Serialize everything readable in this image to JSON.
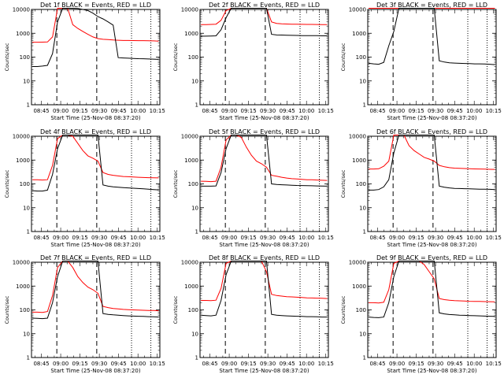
{
  "chart_data": [
    {
      "type": "line",
      "title": "Det 1f BLACK = Events, RED = LLD",
      "xlabel": "Start Time (25-Nov-08 08:37:20)",
      "ylabel": "Counts/sec",
      "yscale": "log",
      "ylim": [
        1,
        10000
      ],
      "x_tick_labels": [
        "08:45",
        "09:00",
        "09:15",
        "09:30",
        "09:45",
        "10:00",
        "10:15"
      ],
      "y_tick_labels": [
        "1",
        "10",
        "100",
        "1000",
        "10000"
      ],
      "series": [
        {
          "color": "#ff0000",
          "values": [
            420,
            420,
            425,
            430,
            700,
            12000,
            12000,
            11000,
            2300,
            1600,
            1200,
            900,
            700,
            600,
            560,
            540,
            520,
            510,
            500,
            500,
            495,
            490,
            490,
            485,
            480,
            470
          ]
        },
        {
          "color": "#000000",
          "values": [
            40,
            40,
            42,
            45,
            140,
            3000,
            12000,
            12000,
            11500,
            11000,
            10000,
            9000,
            7000,
            5000,
            4000,
            3000,
            2200,
            95,
            92,
            90,
            88,
            86,
            85,
            83,
            82,
            80
          ]
        }
      ],
      "markers": {
        "dashed": [
          "08:57",
          "09:28"
        ],
        "dotted": [
          "09:55",
          "10:10"
        ]
      }
    },
    {
      "type": "line",
      "title": "Det 2f BLACK = Events, RED = LLD",
      "xlabel": "Start Time (25-Nov-08 08:37:20)",
      "ylabel": "Counts/sec",
      "yscale": "log",
      "ylim": [
        1,
        10000
      ],
      "x_tick_labels": [
        "08:45",
        "09:00",
        "09:15",
        "09:30",
        "09:45",
        "10:00",
        "10:15"
      ],
      "y_tick_labels": [
        "1",
        "10",
        "100",
        "1000",
        "10000"
      ],
      "series": [
        {
          "color": "#ff0000",
          "values": [
            2300,
            2300,
            2350,
            2400,
            3500,
            9000,
            12000,
            12000,
            12000,
            12000,
            12000,
            12000,
            12000,
            12000,
            3000,
            2600,
            2500,
            2450,
            2400,
            2400,
            2380,
            2350,
            2350,
            2330,
            2320,
            2300
          ]
        },
        {
          "color": "#000000",
          "values": [
            750,
            760,
            770,
            780,
            1400,
            4500,
            12000,
            12000,
            12000,
            12000,
            12000,
            12000,
            12000,
            12000,
            900,
            850,
            840,
            830,
            820,
            810,
            800,
            800,
            790,
            790,
            780,
            780
          ]
        }
      ],
      "markers": {
        "dashed": [
          "08:57",
          "09:28"
        ],
        "dotted": [
          "09:55",
          "10:10"
        ]
      }
    },
    {
      "type": "line",
      "title": "Det 3f BLACK = Events, RED = LLD",
      "xlabel": "Start Time (25-Nov-08 08:37:20)",
      "ylabel": "Counts/sec",
      "yscale": "log",
      "ylim": [
        1,
        10000
      ],
      "x_tick_labels": [
        "08:45",
        "09:00",
        "09:15",
        "09:30",
        "09:45",
        "10:00",
        "10:15"
      ],
      "y_tick_labels": [
        "1",
        "10",
        "100",
        "1000",
        "10000"
      ],
      "series": [
        {
          "color": "#ff0000",
          "values": [
            12000,
            12000,
            12000,
            12000,
            12000,
            12000,
            12000,
            12000,
            12000,
            12000,
            12000,
            12000,
            12000,
            12000,
            12000,
            12000,
            12000,
            12000,
            12000,
            12000,
            12000,
            12000,
            12000,
            12000,
            12000,
            12000
          ]
        },
        {
          "color": "#000000",
          "values": [
            55,
            52,
            50,
            60,
            300,
            1200,
            12000,
            12000,
            12000,
            12000,
            12000,
            12000,
            12000,
            12000,
            70,
            62,
            58,
            56,
            55,
            54,
            53,
            52,
            52,
            51,
            50,
            48
          ]
        }
      ],
      "markers": {
        "dashed": [
          "08:57",
          "09:28"
        ],
        "dotted": [
          "09:55",
          "10:10"
        ]
      }
    },
    {
      "type": "line",
      "title": "Det 4f BLACK = Events, RED = LLD",
      "xlabel": "Start Time (25-Nov-08 08:37:20)",
      "ylabel": "Counts/sec",
      "yscale": "log",
      "ylim": [
        1,
        10000
      ],
      "x_tick_labels": [
        "08:45",
        "09:00",
        "09:15",
        "09:30",
        "09:45",
        "10:00",
        "10:15"
      ],
      "y_tick_labels": [
        "1",
        "10",
        "100",
        "1000",
        "10000"
      ],
      "series": [
        {
          "color": "#ff0000",
          "values": [
            150,
            148,
            145,
            150,
            600,
            8000,
            12000,
            12000,
            10000,
            5000,
            2500,
            1500,
            1200,
            900,
            300,
            250,
            230,
            215,
            205,
            200,
            195,
            190,
            185,
            182,
            180,
            178
          ]
        },
        {
          "color": "#000000",
          "values": [
            52,
            50,
            50,
            55,
            250,
            3000,
            12000,
            12000,
            12000,
            12000,
            12000,
            12000,
            12000,
            12000,
            90,
            80,
            75,
            72,
            70,
            68,
            66,
            64,
            62,
            60,
            58,
            56
          ]
        }
      ],
      "markers": {
        "dashed": [
          "08:57",
          "09:28"
        ],
        "dotted": [
          "09:55",
          "10:10"
        ]
      }
    },
    {
      "type": "line",
      "title": "Det 5f BLACK = Events, RED = LLD",
      "xlabel": "Start Time (25-Nov-08 08:37:20)",
      "ylabel": "Counts/sec",
      "yscale": "log",
      "ylim": [
        1,
        10000
      ],
      "x_tick_labels": [
        "08:45",
        "09:00",
        "09:15",
        "09:30",
        "09:45",
        "10:00",
        "10:15"
      ],
      "y_tick_labels": [
        "1",
        "10",
        "100",
        "1000",
        "10000"
      ],
      "series": [
        {
          "color": "#ff0000",
          "values": [
            130,
            128,
            125,
            130,
            500,
            7000,
            12000,
            12000,
            9000,
            3500,
            1600,
            900,
            700,
            500,
            230,
            210,
            190,
            175,
            165,
            160,
            155,
            150,
            148,
            145,
            142,
            140
          ]
        },
        {
          "color": "#000000",
          "values": [
            80,
            80,
            80,
            82,
            300,
            3000,
            12000,
            12000,
            12000,
            12000,
            12000,
            12000,
            12000,
            12000,
            100,
            95,
            92,
            90,
            88,
            86,
            85,
            84,
            83,
            82,
            81,
            80
          ]
        }
      ],
      "markers": {
        "dashed": [
          "08:57",
          "09:28"
        ],
        "dotted": [
          "09:55",
          "10:10"
        ]
      }
    },
    {
      "type": "line",
      "title": "Det 6f BLACK = Events, RED = LLD",
      "xlabel": "Start Time (25-Nov-08 08:37:20)",
      "ylabel": "Counts/sec",
      "yscale": "log",
      "ylim": [
        1,
        10000
      ],
      "x_tick_labels": [
        "08:45",
        "09:00",
        "09:15",
        "09:30",
        "09:45",
        "10:00",
        "10:15"
      ],
      "y_tick_labels": [
        "1",
        "10",
        "100",
        "1000",
        "10000"
      ],
      "series": [
        {
          "color": "#ff0000",
          "values": [
            420,
            420,
            430,
            550,
            900,
            12000,
            12000,
            12000,
            4000,
            2500,
            1800,
            1300,
            1100,
            900,
            600,
            520,
            480,
            460,
            450,
            440,
            430,
            425,
            420,
            415,
            410,
            405
          ]
        },
        {
          "color": "#000000",
          "values": [
            55,
            55,
            58,
            75,
            150,
            2000,
            12000,
            12000,
            12000,
            12000,
            12000,
            12000,
            12000,
            12000,
            80,
            72,
            68,
            65,
            64,
            63,
            62,
            61,
            60,
            60,
            59,
            58
          ]
        }
      ],
      "markers": {
        "dashed": [
          "08:57",
          "09:28"
        ],
        "dotted": [
          "09:55",
          "10:10"
        ]
      }
    },
    {
      "type": "line",
      "title": "Det 7f BLACK = Events, RED = LLD",
      "xlabel": "Start Time (25-Nov-08 08:37:20)",
      "ylabel": "Counts/sec",
      "yscale": "log",
      "ylim": [
        1,
        10000
      ],
      "x_tick_labels": [
        "08:45",
        "09:00",
        "09:15",
        "09:30",
        "09:45",
        "10:00",
        "10:15"
      ],
      "y_tick_labels": [
        "1",
        "10",
        "100",
        "1000",
        "10000"
      ],
      "series": [
        {
          "color": "#ff0000",
          "values": [
            80,
            80,
            78,
            85,
            400,
            6000,
            12000,
            12000,
            6000,
            2500,
            1400,
            900,
            700,
            500,
            140,
            125,
            115,
            110,
            105,
            102,
            100,
            98,
            96,
            95,
            94,
            92
          ]
        },
        {
          "color": "#000000",
          "values": [
            45,
            44,
            43,
            45,
            200,
            2500,
            12000,
            12000,
            12000,
            12000,
            12000,
            12000,
            12000,
            12000,
            70,
            65,
            62,
            60,
            58,
            56,
            55,
            54,
            53,
            52,
            51,
            50
          ]
        }
      ],
      "markers": {
        "dashed": [
          "08:57",
          "09:28"
        ],
        "dotted": [
          "09:55",
          "10:10"
        ]
      }
    },
    {
      "type": "line",
      "title": "Det 8f BLACK = Events, RED = LLD",
      "xlabel": "Start Time (25-Nov-08 08:37:20)",
      "ylabel": "Counts/sec",
      "yscale": "log",
      "ylim": [
        1,
        10000
      ],
      "x_tick_labels": [
        "08:45",
        "09:00",
        "09:15",
        "09:30",
        "09:45",
        "10:00",
        "10:15"
      ],
      "y_tick_labels": [
        "1",
        "10",
        "100",
        "1000",
        "10000"
      ],
      "series": [
        {
          "color": "#ff0000",
          "values": [
            250,
            250,
            245,
            255,
            800,
            9000,
            12000,
            12000,
            12000,
            12000,
            12000,
            12000,
            12000,
            4000,
            450,
            400,
            380,
            360,
            350,
            340,
            330,
            320,
            315,
            310,
            305,
            300
          ]
        },
        {
          "color": "#000000",
          "values": [
            60,
            58,
            56,
            60,
            250,
            3000,
            12000,
            12000,
            12000,
            12000,
            12000,
            12000,
            12000,
            12000,
            65,
            60,
            58,
            56,
            55,
            54,
            53,
            52,
            52,
            51,
            50,
            50
          ]
        }
      ],
      "markers": {
        "dashed": [
          "08:57",
          "09:28"
        ],
        "dotted": [
          "09:55",
          "10:10"
        ]
      }
    },
    {
      "type": "line",
      "title": "Det 9f BLACK = Events, RED = LLD",
      "xlabel": "Start Time (25-Nov-08 08:37:20)",
      "ylabel": "Counts/sec",
      "yscale": "log",
      "ylim": [
        1,
        10000
      ],
      "x_tick_labels": [
        "08:45",
        "09:00",
        "09:15",
        "09:30",
        "09:45",
        "10:00",
        "10:15"
      ],
      "y_tick_labels": [
        "1",
        "10",
        "100",
        "1000",
        "10000"
      ],
      "series": [
        {
          "color": "#ff0000",
          "values": [
            200,
            200,
            195,
            210,
            700,
            9000,
            12000,
            12000,
            12000,
            12000,
            12000,
            8000,
            4000,
            2000,
            300,
            270,
            255,
            245,
            240,
            235,
            230,
            228,
            225,
            222,
            220,
            218
          ]
        },
        {
          "color": "#000000",
          "values": [
            50,
            48,
            47,
            50,
            200,
            2500,
            12000,
            12000,
            12000,
            12000,
            12000,
            12000,
            12000,
            12000,
            75,
            68,
            64,
            62,
            60,
            59,
            58,
            57,
            56,
            55,
            54,
            53
          ]
        }
      ],
      "markers": {
        "dashed": [
          "08:57",
          "09:28"
        ],
        "dotted": [
          "09:55",
          "10:10"
        ]
      }
    }
  ]
}
